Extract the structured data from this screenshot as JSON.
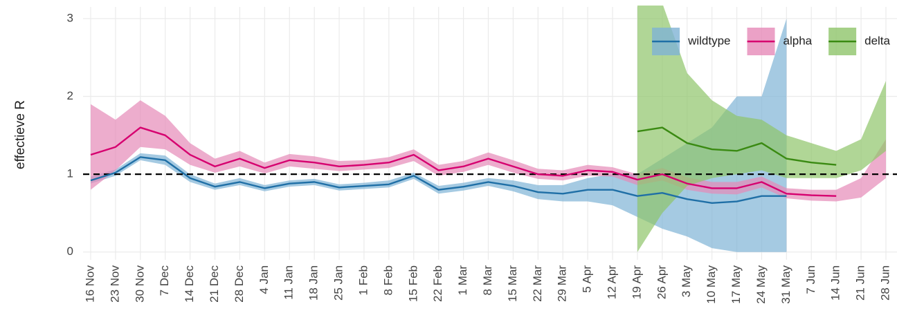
{
  "chart_data": {
    "type": "line",
    "y_label": "effectieve R",
    "categories": [
      "16 Nov",
      "23 Nov",
      "30 Nov",
      "7 Dec",
      "14 Dec",
      "21 Dec",
      "28 Dec",
      "4 Jan",
      "11 Jan",
      "18 Jan",
      "25 Jan",
      "1 Feb",
      "8 Feb",
      "15 Feb",
      "22 Feb",
      "1 Mar",
      "8 Mar",
      "15 Mar",
      "22 Mar",
      "29 Mar",
      "5 Apr",
      "12 Apr",
      "19 Apr",
      "26 Apr",
      "3 May",
      "10 May",
      "17 May",
      "24 May",
      "31 May",
      "7 Jun",
      "14 Jun",
      "21 Jun",
      "28 Jun"
    ],
    "ylim": [
      -0.1,
      3.15
    ],
    "yticks": [
      0,
      1,
      2,
      3
    ],
    "grid": true,
    "hline": 1,
    "legend": "top-right",
    "series": [
      {
        "name": "wildtype",
        "color": "#1f6fa6",
        "band_color": "#7fb3d5",
        "values": [
          0.92,
          1.02,
          1.22,
          1.18,
          0.95,
          0.84,
          0.9,
          0.82,
          0.88,
          0.9,
          0.83,
          0.85,
          0.87,
          0.98,
          0.8,
          0.84,
          0.9,
          0.85,
          0.77,
          0.75,
          0.8,
          0.8,
          0.72,
          0.76,
          0.68,
          0.63,
          0.65,
          0.72,
          0.72,
          null,
          null,
          null,
          null
        ],
        "lower": [
          0.88,
          0.98,
          1.18,
          1.12,
          0.9,
          0.8,
          0.86,
          0.78,
          0.84,
          0.86,
          0.79,
          0.81,
          0.83,
          0.94,
          0.75,
          0.79,
          0.85,
          0.78,
          0.68,
          0.65,
          0.65,
          0.6,
          0.45,
          0.3,
          0.2,
          0.05,
          0,
          0,
          0,
          null,
          null,
          null,
          null
        ],
        "upper": [
          0.97,
          1.06,
          1.27,
          1.24,
          1.0,
          0.88,
          0.95,
          0.86,
          0.92,
          0.94,
          0.87,
          0.89,
          0.92,
          1.02,
          0.85,
          0.89,
          0.95,
          0.92,
          0.86,
          0.86,
          0.95,
          1.0,
          1.0,
          1.2,
          1.4,
          1.6,
          2.0,
          2.0,
          3.0,
          null,
          null,
          null,
          null
        ]
      },
      {
        "name": "alpha",
        "color": "#d6006f",
        "band_color": "#e68ab8",
        "values": [
          1.25,
          1.35,
          1.6,
          1.5,
          1.25,
          1.1,
          1.2,
          1.08,
          1.18,
          1.15,
          1.1,
          1.12,
          1.15,
          1.25,
          1.05,
          1.1,
          1.2,
          1.1,
          1.0,
          0.98,
          1.05,
          1.03,
          0.93,
          1.0,
          0.88,
          0.82,
          0.82,
          0.9,
          0.75,
          0.73,
          0.72,
          null,
          null
        ],
        "lower": [
          0.8,
          1.05,
          1.35,
          1.32,
          1.12,
          1.02,
          1.1,
          1.01,
          1.1,
          1.07,
          1.04,
          1.06,
          1.08,
          1.17,
          0.98,
          1.03,
          1.12,
          1.02,
          0.94,
          0.92,
          0.98,
          0.97,
          0.86,
          0.92,
          0.8,
          0.75,
          0.74,
          0.83,
          0.69,
          0.66,
          0.65,
          0.7,
          0.95
        ],
        "upper": [
          1.9,
          1.7,
          1.95,
          1.75,
          1.4,
          1.2,
          1.3,
          1.15,
          1.26,
          1.23,
          1.17,
          1.18,
          1.22,
          1.32,
          1.12,
          1.17,
          1.28,
          1.18,
          1.07,
          1.05,
          1.12,
          1.09,
          1.0,
          1.08,
          0.96,
          0.9,
          0.9,
          0.97,
          0.82,
          0.8,
          0.8,
          0.95,
          1.45
        ]
      },
      {
        "name": "delta",
        "color": "#3a8a12",
        "band_color": "#8fc46a",
        "values": [
          null,
          null,
          null,
          null,
          null,
          null,
          null,
          null,
          null,
          null,
          null,
          null,
          null,
          null,
          null,
          null,
          null,
          null,
          null,
          null,
          null,
          null,
          1.55,
          1.6,
          1.4,
          1.32,
          1.3,
          1.4,
          1.2,
          1.15,
          1.12,
          null,
          null
        ],
        "lower": [
          null,
          null,
          null,
          null,
          null,
          null,
          null,
          null,
          null,
          null,
          null,
          null,
          null,
          null,
          null,
          null,
          null,
          null,
          null,
          null,
          null,
          null,
          0,
          0.5,
          0.85,
          0.95,
          1.0,
          1.05,
          0.95,
          0.95,
          0.95,
          1.05,
          1.3
        ],
        "upper": [
          null,
          null,
          null,
          null,
          null,
          null,
          null,
          null,
          null,
          null,
          null,
          null,
          null,
          null,
          null,
          null,
          null,
          null,
          null,
          null,
          null,
          null,
          3.2,
          3.2,
          2.3,
          1.95,
          1.75,
          1.7,
          1.5,
          1.4,
          1.3,
          1.45,
          2.2
        ]
      }
    ]
  }
}
